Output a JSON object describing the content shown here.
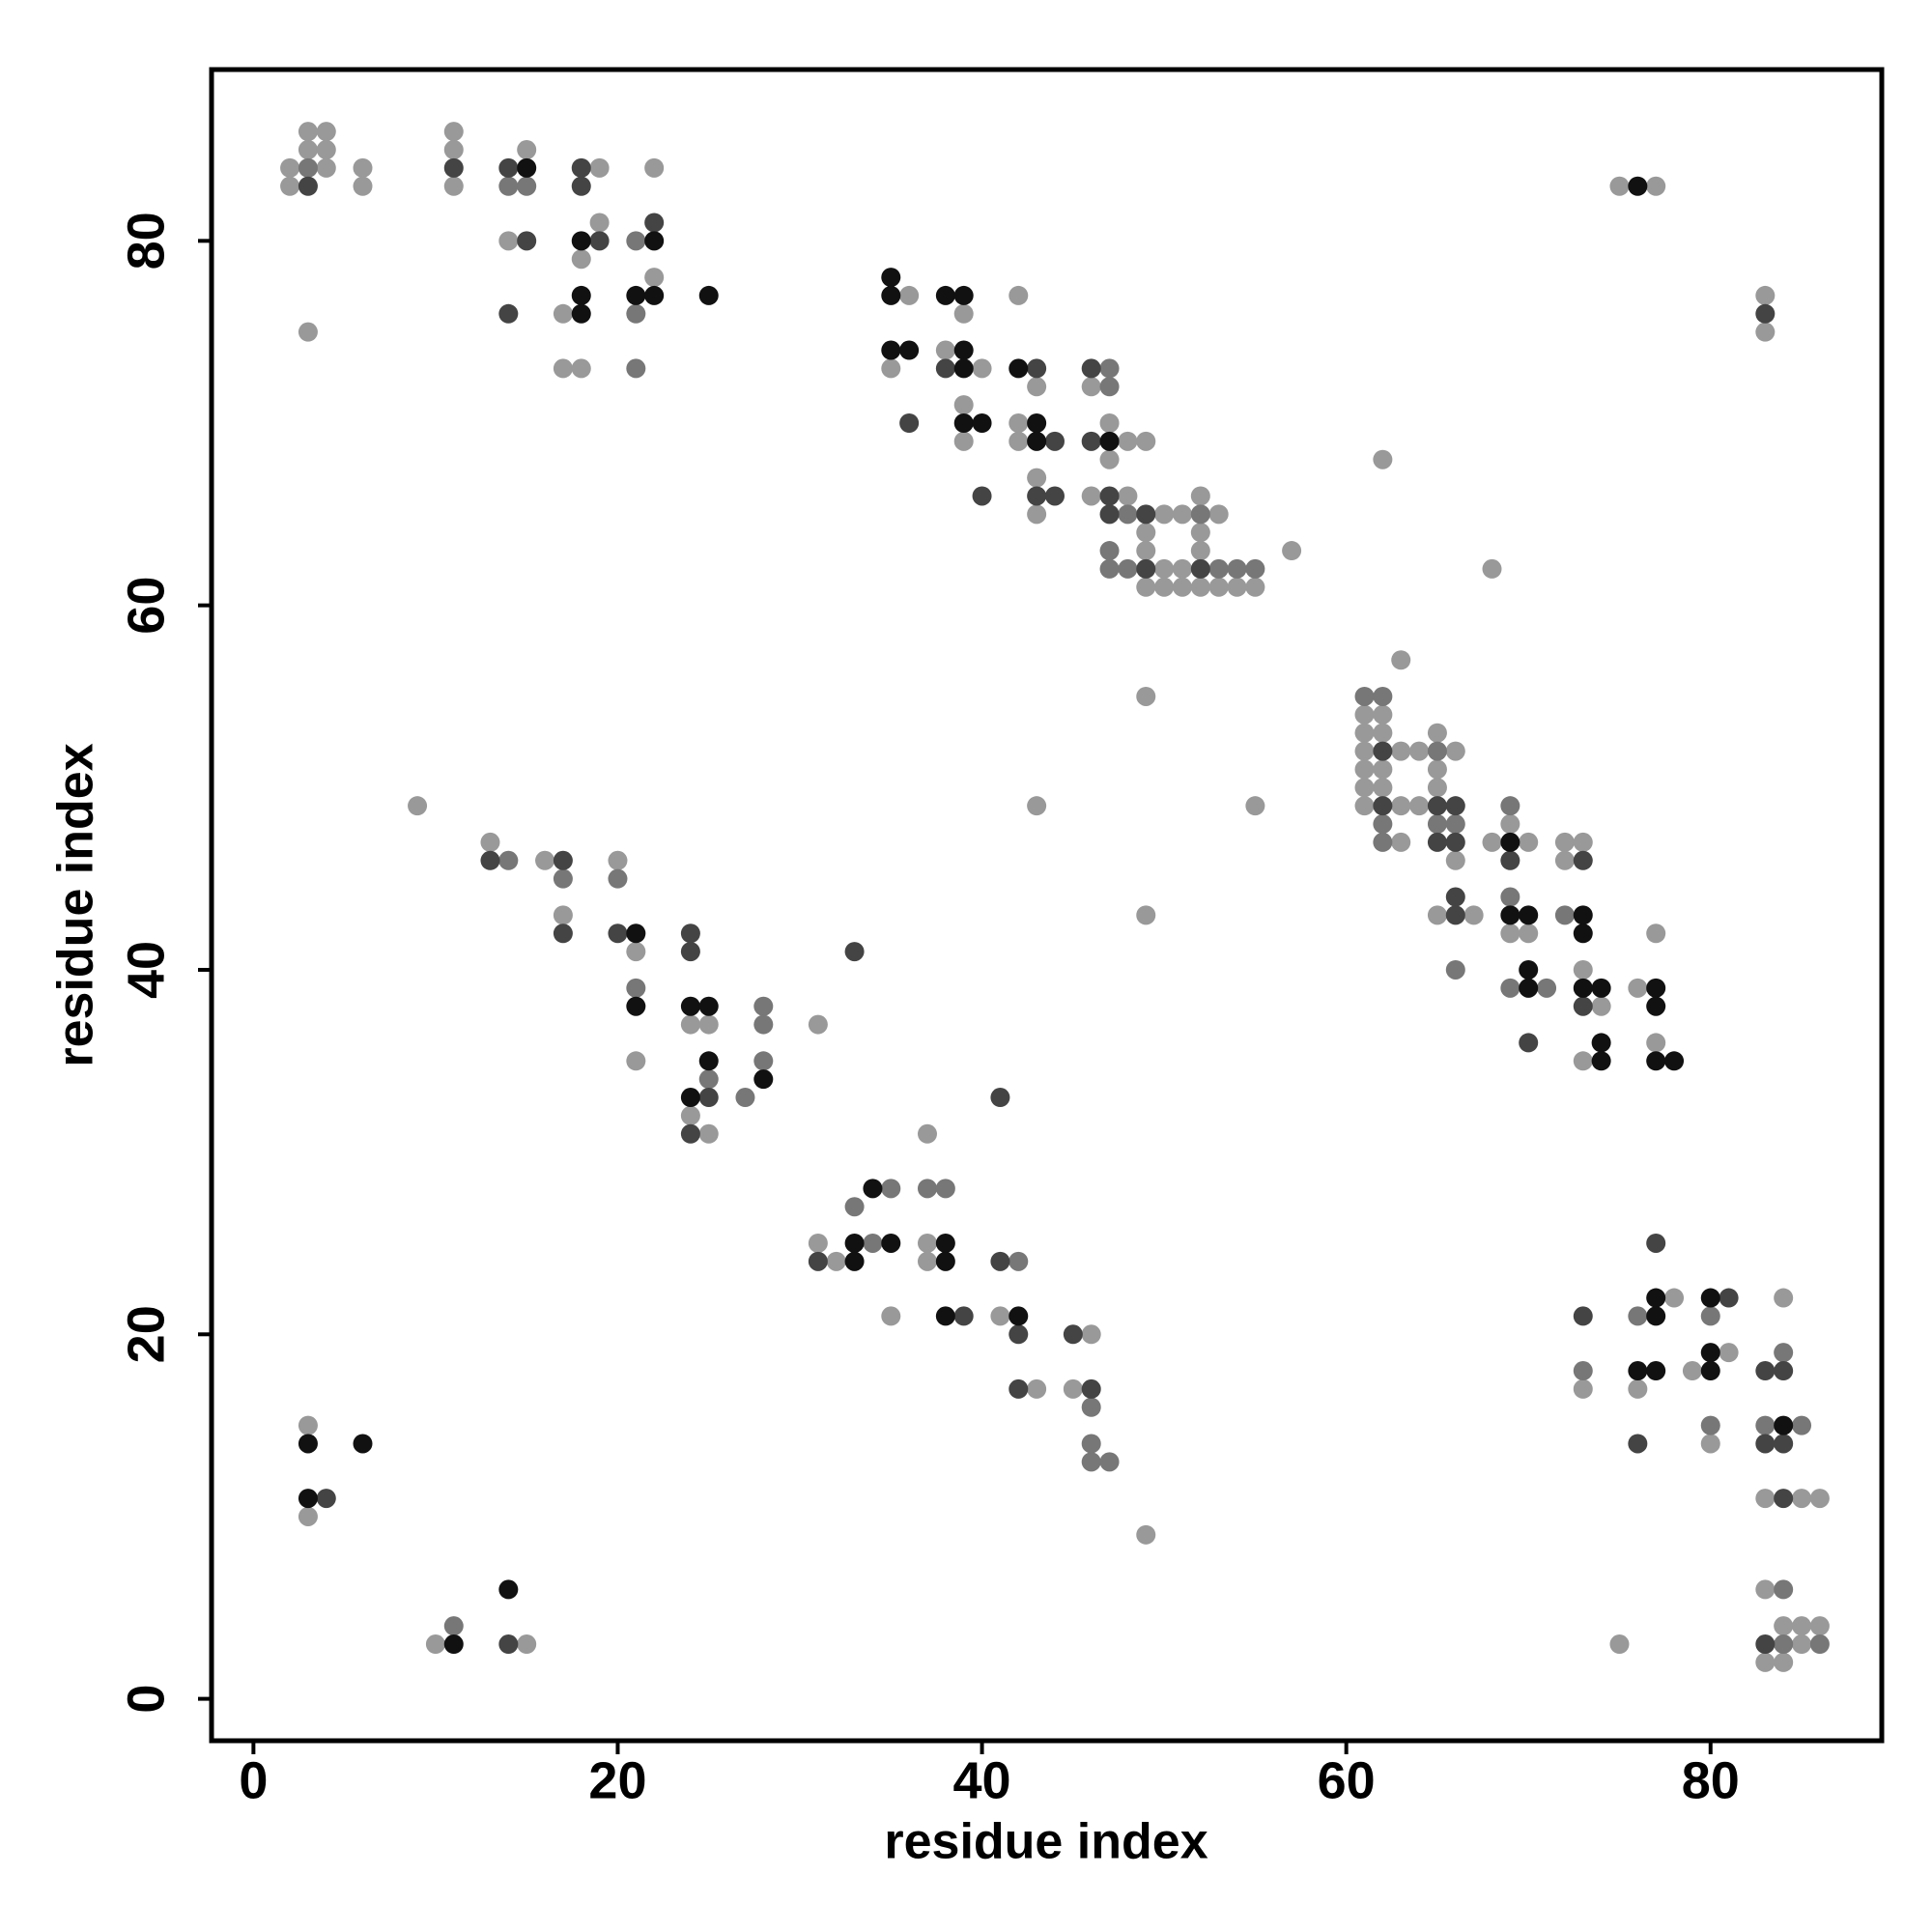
{
  "chart_data": {
    "type": "scatter",
    "xlabel": "residue index",
    "ylabel": "residue index",
    "xlim": [
      -2.3,
      89.4
    ],
    "ylim": [
      -2.3,
      89.4
    ],
    "xticks": [
      0,
      20,
      40,
      60,
      80
    ],
    "yticks": [
      0,
      20,
      40,
      60,
      80
    ],
    "grid": false,
    "series": [
      {
        "color": "#999999",
        "x": [
          3,
          4,
          11,
          3,
          4,
          11,
          15,
          2,
          4,
          6,
          19,
          22,
          2,
          6,
          11,
          75,
          77,
          19,
          14,
          18,
          22,
          36,
          42,
          83,
          17,
          39,
          3,
          83,
          38,
          17,
          18,
          35,
          40,
          43,
          46,
          39,
          42,
          47,
          39,
          42,
          48,
          49,
          47,
          62,
          43,
          46,
          48,
          52,
          43,
          50,
          51,
          53,
          49,
          52,
          49,
          52,
          57,
          50,
          51,
          68,
          49,
          50,
          51,
          52,
          53,
          54,
          55,
          63,
          49,
          61,
          62,
          61,
          62,
          65,
          61,
          63,
          64,
          66,
          61,
          62,
          65,
          61,
          62,
          65,
          9,
          43,
          55,
          61,
          63,
          64,
          69,
          13,
          63,
          68,
          70,
          72,
          73,
          16,
          20,
          66,
          72,
          17,
          49,
          65,
          67,
          69,
          70,
          77,
          21,
          73,
          76,
          74,
          24,
          25,
          31,
          77,
          21,
          73,
          24,
          25,
          37,
          31,
          37,
          32,
          37,
          78,
          84,
          35,
          41,
          46,
          81,
          79,
          43,
          45,
          73,
          76,
          3,
          80,
          83,
          85,
          86,
          3,
          49,
          83,
          84,
          85,
          86,
          10,
          15,
          75,
          85,
          83,
          84
        ],
        "values": [
          86,
          86,
          86,
          85,
          85,
          85,
          85,
          84,
          84,
          84,
          84,
          84,
          83,
          83,
          83,
          83,
          83,
          81,
          80,
          79,
          78,
          77,
          77,
          77,
          76,
          76,
          75,
          75,
          74,
          73,
          73,
          73,
          73,
          72,
          72,
          71,
          70,
          70,
          69,
          69,
          69,
          69,
          68,
          68,
          67,
          66,
          66,
          66,
          65,
          65,
          65,
          65,
          64,
          64,
          63,
          63,
          63,
          62,
          62,
          62,
          61,
          61,
          61,
          61,
          61,
          61,
          61,
          57,
          55,
          54,
          54,
          53,
          53,
          53,
          52,
          52,
          52,
          52,
          51,
          51,
          51,
          50,
          50,
          50,
          49,
          49,
          49,
          49,
          49,
          49,
          48,
          47,
          47,
          47,
          47,
          47,
          47,
          46,
          46,
          46,
          46,
          43,
          43,
          43,
          43,
          42,
          42,
          42,
          41,
          40,
          39,
          38,
          37,
          37,
          37,
          36,
          35,
          35,
          32,
          31,
          31,
          25,
          25,
          24,
          24,
          22,
          22,
          21,
          21,
          20,
          19,
          18,
          17,
          17,
          17,
          17,
          15,
          14,
          11,
          11,
          11,
          10,
          9,
          6,
          4,
          4,
          4,
          3,
          3,
          3,
          3,
          2,
          2
        ]
      },
      {
        "color": "#777777",
        "x": [
          3,
          14,
          15,
          21,
          21,
          21,
          47,
          47,
          48,
          52,
          47,
          47,
          48,
          53,
          54,
          55,
          61,
          62,
          65,
          69,
          62,
          65,
          66,
          62,
          14,
          17,
          20,
          69,
          72,
          66,
          21,
          69,
          71,
          28,
          28,
          28,
          25,
          27,
          35,
          37,
          38,
          33,
          34,
          42,
          76,
          80,
          84,
          73,
          46,
          80,
          83,
          85,
          46,
          46,
          47,
          84,
          11,
          84,
          86
        ],
        "values": [
          84,
          83,
          83,
          80,
          76,
          73,
          73,
          72,
          65,
          65,
          63,
          62,
          62,
          62,
          62,
          62,
          55,
          55,
          52,
          49,
          48,
          48,
          48,
          47,
          46,
          45,
          45,
          44,
          43,
          40,
          39,
          39,
          39,
          38,
          37,
          35,
          34,
          33,
          28,
          28,
          28,
          27,
          25,
          24,
          21,
          21,
          19,
          18,
          16,
          15,
          15,
          15,
          14,
          13,
          13,
          6,
          4,
          3,
          3
        ]
      },
      {
        "color": "#444444",
        "x": [
          11,
          14,
          18,
          3,
          18,
          22,
          15,
          19,
          14,
          83,
          38,
          43,
          46,
          36,
          44,
          46,
          40,
          43,
          44,
          47,
          47,
          49,
          49,
          52,
          62,
          62,
          65,
          66,
          65,
          66,
          13,
          17,
          69,
          73,
          66,
          66,
          17,
          20,
          24,
          24,
          33,
          73,
          70,
          25,
          41,
          24,
          77,
          31,
          41,
          81,
          39,
          73,
          42,
          45,
          83,
          84,
          42,
          46,
          76,
          83,
          84,
          4,
          84,
          14,
          83
        ],
        "values": [
          84,
          84,
          84,
          83,
          83,
          81,
          80,
          80,
          76,
          76,
          73,
          73,
          73,
          70,
          69,
          69,
          66,
          66,
          66,
          66,
          65,
          65,
          62,
          62,
          52,
          49,
          49,
          49,
          47,
          47,
          46,
          46,
          46,
          46,
          44,
          43,
          42,
          42,
          42,
          41,
          41,
          38,
          36,
          33,
          33,
          31,
          25,
          24,
          24,
          22,
          21,
          21,
          20,
          20,
          18,
          18,
          17,
          17,
          14,
          14,
          14,
          11,
          11,
          3,
          3
        ]
      },
      {
        "color": "#111111",
        "x": [
          15,
          76,
          18,
          22,
          35,
          18,
          21,
          22,
          25,
          35,
          38,
          39,
          18,
          35,
          36,
          39,
          39,
          42,
          39,
          40,
          43,
          43,
          47,
          69,
          69,
          70,
          73,
          21,
          73,
          70,
          70,
          73,
          74,
          77,
          21,
          24,
          25,
          77,
          74,
          25,
          74,
          77,
          78,
          28,
          24,
          34,
          33,
          35,
          38,
          33,
          38,
          77,
          80,
          38,
          42,
          77,
          80,
          76,
          77,
          80,
          84,
          3,
          6,
          3,
          14,
          11
        ],
        "values": [
          84,
          83,
          80,
          80,
          78,
          77,
          77,
          77,
          77,
          77,
          77,
          77,
          76,
          74,
          74,
          74,
          73,
          73,
          70,
          70,
          70,
          69,
          69,
          47,
          43,
          43,
          43,
          42,
          42,
          40,
          39,
          39,
          39,
          39,
          38,
          38,
          38,
          38,
          36,
          35,
          35,
          35,
          35,
          34,
          33,
          28,
          25,
          25,
          25,
          24,
          24,
          22,
          22,
          21,
          21,
          21,
          19,
          18,
          18,
          18,
          15,
          14,
          14,
          11,
          6,
          3
        ]
      }
    ]
  }
}
